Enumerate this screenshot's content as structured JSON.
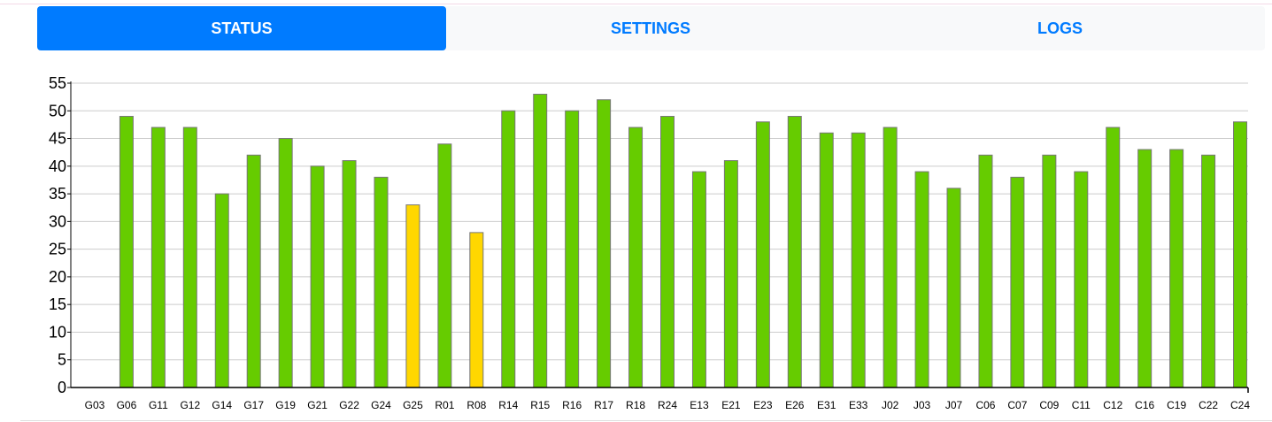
{
  "tabs": [
    {
      "label": "STATUS",
      "active": true
    },
    {
      "label": "SETTINGS",
      "active": false
    },
    {
      "label": "LOGS",
      "active": false
    }
  ],
  "colors": {
    "accent": "#007bff",
    "bar_ok": "#66cc00",
    "bar_warn": "#ffd700",
    "bar_stroke": "#777777",
    "grid": "#cccccc"
  },
  "chart_data": {
    "type": "bar",
    "categories": [
      "G03",
      "G06",
      "G11",
      "G12",
      "G14",
      "G17",
      "G19",
      "G21",
      "G22",
      "G24",
      "G25",
      "R01",
      "R08",
      "R14",
      "R15",
      "R16",
      "R17",
      "R18",
      "R24",
      "E13",
      "E21",
      "E23",
      "E26",
      "E31",
      "E33",
      "J02",
      "J03",
      "J07",
      "C06",
      "C07",
      "C09",
      "C11",
      "C12",
      "C16",
      "C19",
      "C22",
      "C24"
    ],
    "values": [
      0,
      49,
      47,
      47,
      35,
      42,
      45,
      40,
      41,
      38,
      33,
      44,
      28,
      50,
      53,
      50,
      52,
      47,
      49,
      39,
      41,
      48,
      49,
      46,
      46,
      47,
      39,
      36,
      42,
      38,
      42,
      39,
      47,
      43,
      43,
      42,
      48
    ],
    "warning_categories": [
      "G25",
      "R08"
    ],
    "yticks": [
      0,
      5,
      10,
      15,
      20,
      25,
      30,
      35,
      40,
      45,
      50,
      55
    ],
    "ylim": [
      0,
      55
    ],
    "grid": true,
    "legend": "none"
  }
}
